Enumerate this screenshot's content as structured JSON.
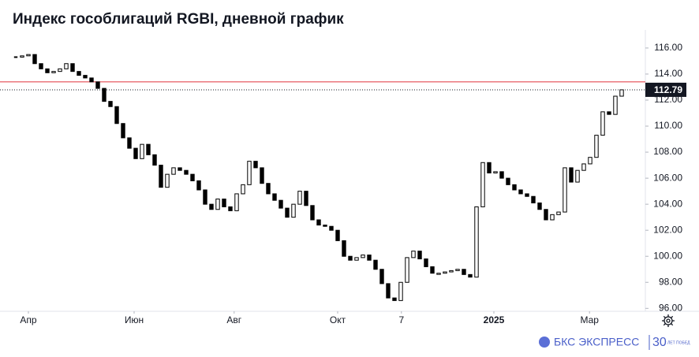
{
  "chart_data": {
    "type": "candlestick",
    "title": "Индекс гособлигаций RGBI, дневной график",
    "values": [
      115.3,
      115.4,
      115.5,
      114.8,
      114.4,
      114.1,
      114.2,
      114.4,
      114.8,
      114.2,
      113.9,
      113.7,
      113.4,
      112.9,
      111.9,
      111.5,
      110.2,
      109.1,
      108.3,
      107.5,
      108.6,
      107.8,
      107.0,
      105.3,
      106.3,
      106.8,
      106.6,
      106.3,
      105.8,
      105.1,
      104.0,
      103.6,
      104.4,
      103.8,
      103.5,
      104.8,
      105.5,
      107.3,
      106.8,
      105.6,
      104.8,
      104.3,
      103.7,
      103.0,
      104.0,
      105.0,
      103.9,
      102.8,
      102.4,
      102.3,
      102.0,
      101.2,
      100.0,
      99.7,
      99.9,
      100.1,
      99.7,
      99.0,
      97.9,
      96.8,
      96.6,
      98.0,
      99.9,
      100.4,
      99.8,
      99.2,
      98.7,
      98.7,
      98.8,
      98.9,
      99.0,
      98.6,
      98.4,
      103.8,
      107.2,
      106.4,
      106.5,
      106.0,
      105.5,
      105.1,
      104.8,
      104.6,
      104.1,
      103.6,
      102.8,
      103.2,
      103.4,
      106.8,
      105.7,
      106.6,
      107.1,
      107.6,
      109.3,
      111.1,
      110.9,
      112.3,
      112.79
    ],
    "last_value": 112.79,
    "level_line": 113.4,
    "up_color": "#ffffff",
    "down_color": "#000000",
    "level_color": "#e0303a",
    "ylim": [
      95.6,
      117.2
    ],
    "yticks": [
      {
        "value": 96,
        "label": "96.00"
      },
      {
        "value": 98,
        "label": "98.00"
      },
      {
        "value": 100,
        "label": "100.00"
      },
      {
        "value": 102,
        "label": "102.00"
      },
      {
        "value": 104,
        "label": "104.00"
      },
      {
        "value": 106,
        "label": "106.00"
      },
      {
        "value": 108,
        "label": "108.00"
      },
      {
        "value": 110,
        "label": "110.00"
      },
      {
        "value": 112,
        "label": "112.00"
      },
      {
        "value": 114,
        "label": "114.00"
      },
      {
        "value": 116,
        "label": "116.00"
      }
    ],
    "xlim": [
      -0.25,
      99.75
    ],
    "xticks": [
      {
        "value": 2,
        "label": "Апр"
      },
      {
        "value": 18.75,
        "label": "Июн"
      },
      {
        "value": 34.6,
        "label": "Авг"
      },
      {
        "value": 51,
        "label": "Окт"
      },
      {
        "value": 61.1,
        "label": "7"
      },
      {
        "value": 75.75,
        "label": "2025"
      },
      {
        "value": 90.9,
        "label": "Мар"
      }
    ]
  },
  "branding": {
    "name": "БКС ЭКСПРЕСС",
    "years": "30",
    "tagline": "ЛЕТ ПОБЕД"
  }
}
